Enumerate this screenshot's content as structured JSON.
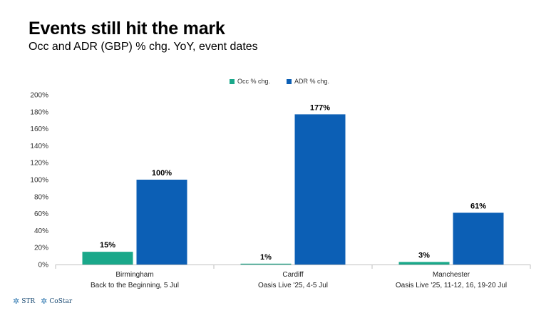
{
  "header": {
    "title": "Events still hit the mark",
    "subtitle": "Occ and ADR (GBP) % chg. YoY, event dates"
  },
  "footer": {
    "logo_str": "STR",
    "logo_costar": "CoStar"
  },
  "chart_data": {
    "type": "bar",
    "title": "Events still hit the mark",
    "subtitle": "Occ and ADR (GBP) % chg. YoY, event dates",
    "categories": [
      [
        "Birmingham",
        "Back to the Beginning, 5 Jul"
      ],
      [
        "Cardiff",
        "Oasis Live '25, 4-5 Jul"
      ],
      [
        "Manchester",
        "Oasis Live '25, 11-12, 16, 19-20 Jul"
      ]
    ],
    "series": [
      {
        "name": "Occ % chg.",
        "color": "#1aa88a",
        "values": [
          15,
          1,
          3
        ],
        "labels": [
          "15%",
          "1%",
          "3%"
        ]
      },
      {
        "name": "ADR % chg.",
        "color": "#0c5fb5",
        "values": [
          100,
          177,
          61
        ],
        "labels": [
          "100%",
          "177%",
          "61%"
        ]
      }
    ],
    "ylim": [
      0,
      200
    ],
    "yticks": [
      "0%",
      "20%",
      "40%",
      "60%",
      "80%",
      "100%",
      "120%",
      "140%",
      "160%",
      "180%",
      "200%"
    ],
    "grid": false,
    "legend": "top-center",
    "xlabel": "",
    "ylabel": ""
  }
}
